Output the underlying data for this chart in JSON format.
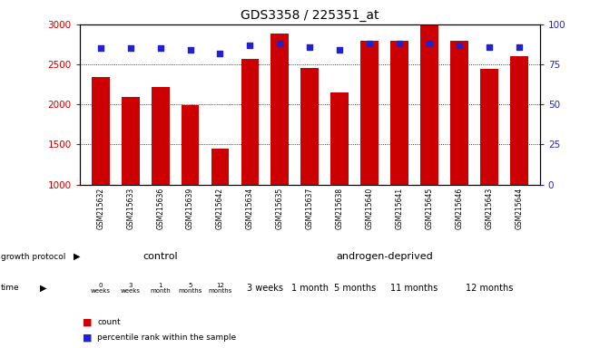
{
  "title": "GDS3358 / 225351_at",
  "samples": [
    "GSM215632",
    "GSM215633",
    "GSM215636",
    "GSM215639",
    "GSM215642",
    "GSM215634",
    "GSM215635",
    "GSM215637",
    "GSM215638",
    "GSM215640",
    "GSM215641",
    "GSM215645",
    "GSM215646",
    "GSM215643",
    "GSM215644"
  ],
  "counts": [
    2340,
    2095,
    2215,
    1990,
    1450,
    2570,
    2890,
    2460,
    2150,
    2790,
    2790,
    2990,
    2790,
    2440,
    2600
  ],
  "percentile_ranks": [
    85,
    85,
    85,
    84,
    82,
    87,
    88,
    86,
    84,
    88,
    88,
    88,
    87,
    86,
    86
  ],
  "ymin": 1000,
  "ymax": 3000,
  "bar_color": "#cc0000",
  "dot_color": "#2222cc",
  "bg_color": "#ffffff",
  "tick_label_color_left": "#cc0000",
  "tick_label_color_right": "#2222cc",
  "yticks_left": [
    1000,
    1500,
    2000,
    2500,
    3000
  ],
  "yticks_right": [
    0,
    25,
    50,
    75,
    100
  ],
  "control_color": "#aaffaa",
  "androgen_color": "#55dd55",
  "time_color": "#dd88ee",
  "gsm_bg_color": "#cccccc",
  "time_labels_control": [
    "0\nweeks",
    "3\nweeks",
    "1\nmonth",
    "5\nmonths",
    "12\nmonths"
  ],
  "time_labels_androgen": [
    "3 weeks",
    "1 month",
    "5 months",
    "11 months",
    "12 months"
  ],
  "time_androgen_groups": [
    [
      5,
      6
    ],
    [
      7
    ],
    [
      8,
      9
    ],
    [
      10,
      11
    ],
    [
      12,
      13,
      14
    ]
  ],
  "n_control": 5,
  "n_androgen": 10
}
